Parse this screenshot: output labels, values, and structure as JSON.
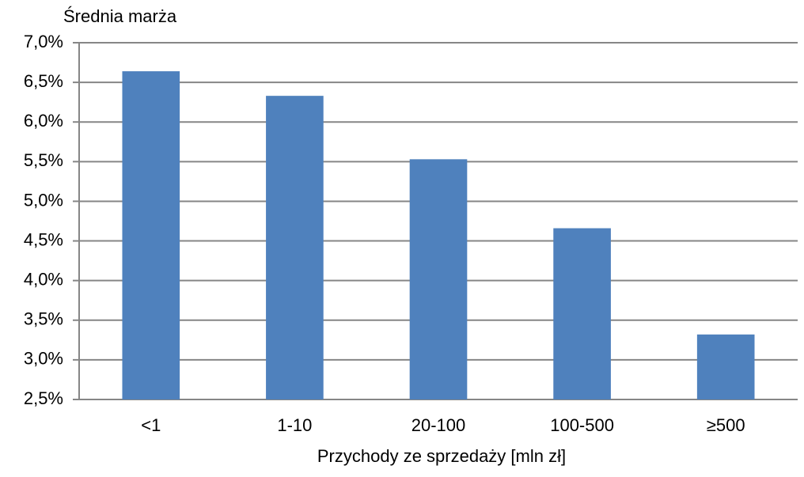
{
  "chart_data": {
    "type": "bar",
    "title": "Średnia marża",
    "x_label": "Przychody ze sprzedaży [mln zł]",
    "categories": [
      "<1",
      "1-10",
      "20-100",
      "100-500",
      "≥500"
    ],
    "values": [
      6.64,
      6.33,
      5.53,
      4.66,
      3.32
    ],
    "color": "#4f81bd",
    "ylim": [
      2.5,
      7.0
    ],
    "yticks": [
      {
        "value": 2.5,
        "label": "2,5%"
      },
      {
        "value": 3.0,
        "label": "3,0%"
      },
      {
        "value": 3.5,
        "label": "3,5%"
      },
      {
        "value": 4.0,
        "label": "4,0%"
      },
      {
        "value": 4.5,
        "label": "4,5%"
      },
      {
        "value": 5.0,
        "label": "5,0%"
      },
      {
        "value": 5.5,
        "label": "5,5%"
      },
      {
        "value": 6.0,
        "label": "6,0%"
      },
      {
        "value": 6.5,
        "label": "6,5%"
      },
      {
        "value": 7.0,
        "label": "7,0%"
      }
    ],
    "grid": true
  }
}
